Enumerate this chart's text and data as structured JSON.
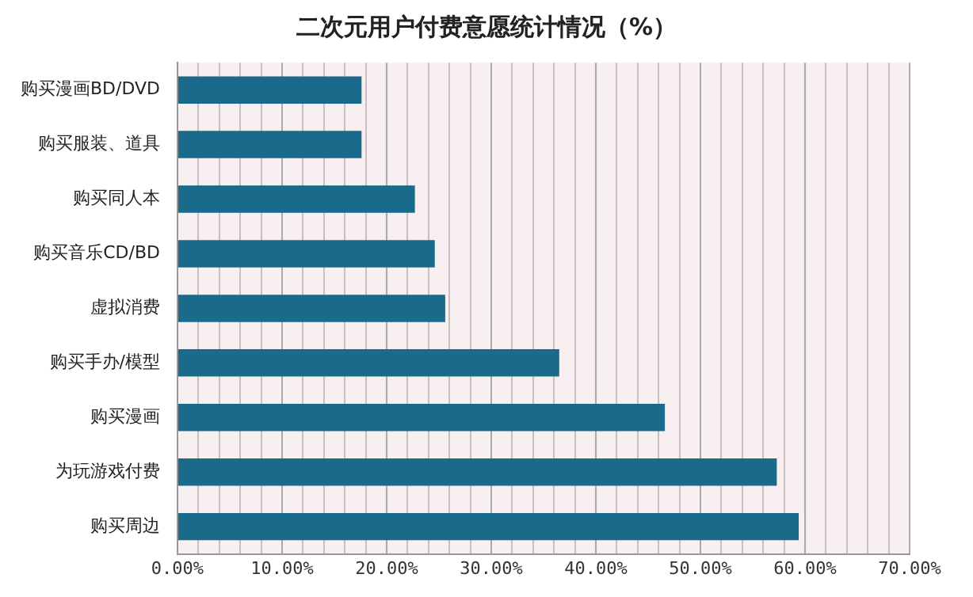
{
  "chart_data": {
    "type": "bar",
    "orientation": "horizontal",
    "title": "二次元用户付费意愿统计情况（%）",
    "categories": [
      "购买漫画BD/DVD",
      "购买服装、道具",
      "购买同人本",
      "购买音乐CD/BD",
      "虚拟消费",
      "购买手办/模型",
      "购买漫画",
      "为玩游戏付费",
      "购买周边"
    ],
    "values": [
      17.6,
      17.6,
      22.7,
      24.6,
      25.6,
      36.5,
      46.6,
      57.3,
      59.4
    ],
    "color": "#1a6a8c",
    "xlim": [
      0,
      70
    ],
    "xticks": [
      {
        "value": 0,
        "label": "0.00%"
      },
      {
        "value": 2,
        "label": null
      },
      {
        "value": 4,
        "label": null
      },
      {
        "value": 6,
        "label": null
      },
      {
        "value": 8,
        "label": null
      },
      {
        "value": 10,
        "label": "10.00%"
      },
      {
        "value": 12,
        "label": null
      },
      {
        "value": 14,
        "label": null
      },
      {
        "value": 16,
        "label": null
      },
      {
        "value": 18,
        "label": null
      },
      {
        "value": 20,
        "label": "20.00%"
      },
      {
        "value": 22,
        "label": null
      },
      {
        "value": 24,
        "label": null
      },
      {
        "value": 26,
        "label": null
      },
      {
        "value": 28,
        "label": null
      },
      {
        "value": 30,
        "label": "30.00%"
      },
      {
        "value": 32,
        "label": null
      },
      {
        "value": 34,
        "label": null
      },
      {
        "value": 36,
        "label": null
      },
      {
        "value": 38,
        "label": null
      },
      {
        "value": 40,
        "label": "40.00%"
      },
      {
        "value": 42,
        "label": null
      },
      {
        "value": 44,
        "label": null
      },
      {
        "value": 46,
        "label": null
      },
      {
        "value": 48,
        "label": null
      },
      {
        "value": 50,
        "label": "50.00%"
      },
      {
        "value": 52,
        "label": null
      },
      {
        "value": 54,
        "label": null
      },
      {
        "value": 56,
        "label": null
      },
      {
        "value": 58,
        "label": null
      },
      {
        "value": 60,
        "label": "60.00%"
      },
      {
        "value": 62,
        "label": null
      },
      {
        "value": 64,
        "label": null
      },
      {
        "value": 66,
        "label": null
      },
      {
        "value": 68,
        "label": null
      },
      {
        "value": 70,
        "label": "70.00%"
      }
    ],
    "grid": "x",
    "legend": false
  }
}
